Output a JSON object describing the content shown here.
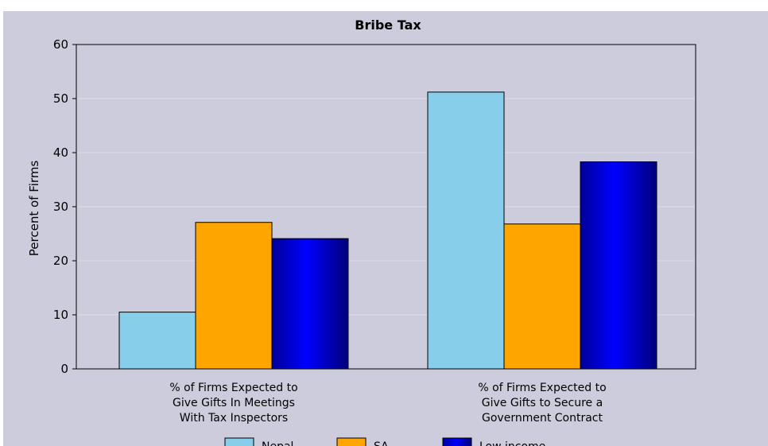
{
  "colors": {
    "panel_bg": "#ccccdc",
    "plot_bg": "#ccccdc",
    "gridline": "#dedee8"
  },
  "chart_data": {
    "type": "bar",
    "title": "Bribe Tax",
    "xlabel": "",
    "ylabel": "Percent of Firms",
    "ylim": [
      0,
      60
    ],
    "yticks": [
      "0",
      "10",
      "20",
      "30",
      "40",
      "50",
      "60"
    ],
    "grid": true,
    "legend_position": "bottom",
    "categories": [
      [
        "% of Firms Expected to",
        "Give Gifts In Meetings",
        "With Tax Inspectors"
      ],
      [
        "% of Firms Expected to",
        "Give Gifts to Secure a",
        "Government Contract"
      ]
    ],
    "series": [
      {
        "name": "Nepal",
        "color": "#87ceeb",
        "values": [
          10.5,
          51.2
        ]
      },
      {
        "name": "SA",
        "color": "#ffa500",
        "values": [
          27.1,
          26.8
        ]
      },
      {
        "name": "Low income",
        "color": "#0000ff",
        "values": [
          24.1,
          38.3
        ]
      }
    ]
  }
}
